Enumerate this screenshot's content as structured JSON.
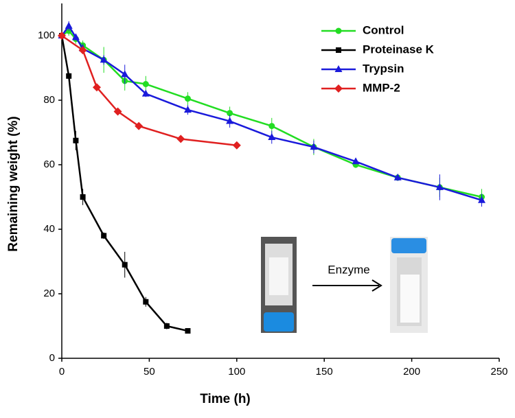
{
  "chart_data": {
    "type": "line",
    "xlabel": "Time (h)",
    "ylabel": "Remaining weight (%)",
    "xlim": [
      0,
      250
    ],
    "ylim": [
      0,
      110
    ],
    "xticks": [
      0,
      50,
      100,
      150,
      200,
      250
    ],
    "yticks": [
      0,
      20,
      40,
      60,
      80,
      100
    ],
    "legend": "upper right",
    "annotation": "Enzyme",
    "series": [
      {
        "name": "Control",
        "color": "#22dd22",
        "marker": "circle",
        "x": [
          0,
          4,
          8,
          12,
          24,
          36,
          48,
          72,
          96,
          120,
          144,
          168,
          192,
          216,
          240
        ],
        "values": [
          100,
          101.5,
          99,
          97,
          92.5,
          86,
          85,
          80.5,
          76,
          72,
          65.5,
          60,
          56,
          53,
          50
        ],
        "errors": [
          0.5,
          1.5,
          1.5,
          1.5,
          4,
          3,
          2.5,
          2,
          2,
          2.5,
          2.5,
          1,
          1,
          3,
          2.5
        ]
      },
      {
        "name": "Proteinase K",
        "color": "#000000",
        "marker": "square",
        "x": [
          0,
          4,
          8,
          12,
          24,
          36,
          48,
          60,
          72
        ],
        "values": [
          100,
          87.5,
          67.5,
          50,
          38,
          29,
          17.5,
          10,
          8.5
        ],
        "errors": [
          0.5,
          1,
          3,
          2.5,
          1,
          4,
          1.5,
          1,
          0.5
        ]
      },
      {
        "name": "Trypsin",
        "color": "#1a1adb",
        "marker": "triangle",
        "x": [
          0,
          4,
          8,
          12,
          24,
          36,
          48,
          72,
          96,
          120,
          144,
          168,
          192,
          216,
          240
        ],
        "values": [
          100,
          103,
          99.5,
          96,
          92.5,
          88,
          82,
          77,
          73.5,
          68.5,
          65.5,
          61,
          56,
          53,
          49
        ],
        "errors": [
          0.5,
          1.5,
          1,
          1.5,
          1.5,
          3,
          1,
          1.5,
          2,
          2,
          2,
          0.5,
          1,
          4,
          2
        ]
      },
      {
        "name": "MMP-2",
        "color": "#e02020",
        "marker": "diamond",
        "x": [
          0,
          12,
          20,
          32,
          44,
          68,
          100
        ],
        "values": [
          100,
          95.5,
          84,
          76.5,
          72,
          68,
          66
        ],
        "errors": [
          0,
          0,
          0,
          0,
          0,
          0,
          0
        ]
      }
    ]
  }
}
